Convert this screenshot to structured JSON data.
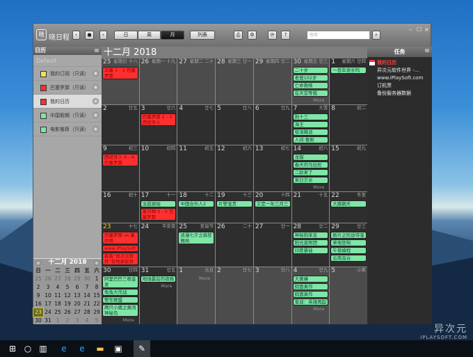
{
  "app": {
    "title": "晓日程",
    "logo_text": "晓"
  },
  "toolbar": {
    "prev": "‹",
    "location": "●",
    "next": "›",
    "views": [
      "日",
      "周",
      "月"
    ],
    "active_view": "月",
    "list": "列表",
    "print": "⎙",
    "settings": "⚙",
    "sync": "⟳",
    "help": "?",
    "search_placeholder": "搜索",
    "search_icon": "⌕",
    "minimize": "–",
    "maximize": "☐",
    "close": "×"
  },
  "left": {
    "header": "日历",
    "default_label": "Default",
    "calendars": [
      {
        "name": "我的订阅（只读）",
        "color": "#f2e24c",
        "selected": false
      },
      {
        "name": "巴塞罗那（只读）",
        "color": "#ff2f2f",
        "selected": false
      },
      {
        "name": "我的日历",
        "color": "#ff2f2f",
        "selected": true
      },
      {
        "name": "中国假期（只读）",
        "color": "#7fe6a6",
        "selected": false
      },
      {
        "name": "电影推荐（只读）",
        "color": "#7fe6a6",
        "selected": false
      }
    ]
  },
  "mini": {
    "title": "十二月 2018",
    "weekdays": [
      "日",
      "一",
      "二",
      "三",
      "四",
      "五",
      "六"
    ],
    "days": [
      [
        "25",
        "26",
        "27",
        "28",
        "29",
        "30",
        "1"
      ],
      [
        "2",
        "3",
        "4",
        "5",
        "6",
        "7",
        "8"
      ],
      [
        "9",
        "10",
        "11",
        "12",
        "13",
        "14",
        "15"
      ],
      [
        "16",
        "17",
        "18",
        "19",
        "20",
        "21",
        "22"
      ],
      [
        "23",
        "24",
        "25",
        "26",
        "27",
        "28",
        "29"
      ],
      [
        "30",
        "31",
        "1",
        "2",
        "3",
        "4",
        "5"
      ]
    ],
    "today": "23"
  },
  "main": {
    "title": "十二月 2018",
    "more_label": "More",
    "weeks": [
      [
        {
          "d": "25",
          "lu": "星期日 十八",
          "om": true,
          "ev": [
            [
              "r",
              "马塞 1 - 1 巴塞罗那"
            ]
          ]
        },
        {
          "d": "26",
          "lu": "星期一 十九",
          "om": true,
          "ev": []
        },
        {
          "d": "27",
          "lu": "星期二 二十",
          "om": true,
          "ev": []
        },
        {
          "d": "28",
          "lu": "星期三 廿一",
          "om": true,
          "ev": []
        },
        {
          "d": "29",
          "lu": "星期四 廿二",
          "om": true,
          "ev": []
        },
        {
          "d": "30",
          "lu": "星期五 廿三",
          "om": true,
          "more": true,
          "ev": [
            [
              "g",
              "二十岁"
            ],
            [
              "g",
              "老爸102岁"
            ],
            [
              "g",
              "亡命救赎"
            ],
            [
              "g",
              "在天堂等我"
            ]
          ]
        },
        {
          "d": "1",
          "lu": "星期六 廿四",
          "ev": [
            [
              "g",
              "一百年很长吗"
            ]
          ]
        }
      ],
      [
        {
          "d": "2",
          "lu": "廿五",
          "ev": []
        },
        {
          "d": "3",
          "lu": "廿六",
          "ev": [
            [
              "r",
              "巴塞罗那 2 - 0 西班牙人"
            ]
          ]
        },
        {
          "d": "4",
          "lu": "廿七",
          "ev": []
        },
        {
          "d": "5",
          "lu": "廿八",
          "ev": []
        },
        {
          "d": "6",
          "lu": "廿九",
          "ev": []
        },
        {
          "d": "7",
          "lu": "大雪",
          "ev": [
            [
              "g",
              "狗十三"
            ],
            [
              "g",
              "海王"
            ],
            [
              "g",
              "惊涛飓浪"
            ],
            [
              "g",
              "人间·喜剧"
            ]
          ]
        },
        {
          "d": "8",
          "lu": "初二",
          "ev": []
        }
      ],
      [
        {
          "d": "9",
          "lu": "初三",
          "ev": [
            [
              "r",
              "西班牙人 0 - 4 巴塞罗那"
            ]
          ]
        },
        {
          "d": "10",
          "lu": "初四",
          "ev": []
        },
        {
          "d": "11",
          "lu": "初五",
          "ev": []
        },
        {
          "d": "12",
          "lu": "初六",
          "ev": []
        },
        {
          "d": "13",
          "lu": "初七",
          "ev": []
        },
        {
          "d": "14",
          "lu": "初八",
          "more": true,
          "ev": [
            [
              "g",
              "龙猫"
            ],
            [
              "g",
              "春天的马拉松"
            ],
            [
              "g",
              "二龄来了"
            ],
            [
              "g",
              "来日方长"
            ]
          ]
        },
        {
          "d": "15",
          "lu": "初九",
          "ev": []
        }
      ],
      [
        {
          "d": "16",
          "lu": "初十",
          "ev": []
        },
        {
          "d": "17",
          "lu": "十一",
          "ev": [
            [
              "g",
              "淡蓝琥珀"
            ],
            [
              "r",
              "莱万特 0 - 5 巴塞罗那"
            ]
          ]
        },
        {
          "d": "18",
          "lu": "十二",
          "ev": [
            [
              "g",
              "中国合伙人2"
            ]
          ]
        },
        {
          "d": "19",
          "lu": "十三",
          "ev": [
            [
              "g",
              "片警宝贵"
            ]
          ]
        },
        {
          "d": "20",
          "lu": "十四",
          "ev": [
            [
              "g",
              "又是一年三月三"
            ]
          ]
        },
        {
          "d": "21",
          "lu": "十五",
          "ev": []
        },
        {
          "d": "22",
          "lu": "冬至",
          "ev": [
            [
              "g",
              "大路朝天"
            ]
          ]
        }
      ],
      [
        {
          "d": "23",
          "lu": "十七",
          "today": true,
          "ev": [
            [
              "r",
              "巴塞罗那 vs 塞尔塔"
            ],
            [
              "r",
              "www.iPlaySoft"
            ],
            [
              "r",
              "看看“异次元软件”有啥新软件"
            ]
          ]
        },
        {
          "d": "24",
          "lu": "平安夜",
          "ev": []
        },
        {
          "d": "25",
          "lu": "圣诞节",
          "ev": [
            [
              "g",
              "浪漫七夕之疯狂雅局"
            ]
          ]
        },
        {
          "d": "26",
          "lu": "二十",
          "ev": []
        },
        {
          "d": "27",
          "lu": "廿一",
          "ev": []
        },
        {
          "d": "28",
          "lu": "廿二",
          "ev": [
            [
              "g",
              "神探狗笨吉"
            ],
            [
              "g",
              "阳光普照团"
            ],
            [
              "g",
              "印度暴徒"
            ]
          ]
        },
        {
          "d": "29",
          "lu": "廿三",
          "ev": [
            [
              "g",
              "断片之险途夺宝"
            ],
            [
              "g",
              "来电狂响"
            ],
            [
              "g",
              "午夜编程"
            ],
            [
              "g",
              "云南虫谷"
            ]
          ]
        }
      ],
      [
        {
          "d": "30",
          "lu": "廿四",
          "more": true,
          "ev": [
            [
              "g",
              "阿里巴巴三根金发"
            ],
            [
              "g",
              "龟兔大作战"
            ],
            [
              "g",
              "警车联盟"
            ],
            [
              "g",
              "两只小猪之勇闯神秘岛"
            ]
          ]
        },
        {
          "d": "31",
          "lu": "廿五",
          "more": true,
          "ev": [
            [
              "g",
              "地球最后的夜晚"
            ]
          ]
        },
        {
          "d": "1",
          "lu": "元旦",
          "om": true,
          "more": true,
          "ev": []
        },
        {
          "d": "2",
          "lu": "廿七",
          "om": true,
          "ev": []
        },
        {
          "d": "3",
          "lu": "廿八",
          "om": true,
          "ev": []
        },
        {
          "d": "4",
          "lu": "廿九",
          "om": true,
          "more": true,
          "ev": [
            [
              "g",
              "大黄蜂"
            ],
            [
              "g",
              "假面真作"
            ],
            [
              "g",
              "假面真作"
            ],
            [
              "g",
              "奎迪：英雄再起"
            ]
          ]
        },
        {
          "d": "5",
          "lu": "小寒",
          "om": true,
          "ev": []
        }
      ]
    ]
  },
  "tasks": {
    "header": "任务",
    "group": "我的日历",
    "items": [
      "异次元软件世界 -...",
      "www.iPlaySoft.com",
      "订机票",
      "备份服务器数据"
    ]
  },
  "watermark": {
    "brand": "异次元",
    "url": "IPLAYSOFT.COM"
  },
  "taskbar": {
    "icons": [
      [
        "start-icon",
        "⊞"
      ],
      [
        "cortana-icon",
        "○"
      ],
      [
        "task-view-icon",
        "▥"
      ],
      [
        "ie-icon",
        "e"
      ],
      [
        "edge-icon",
        "e"
      ],
      [
        "explorer-icon",
        "▬"
      ],
      [
        "store-icon",
        "▣"
      ],
      [
        "calendar-app-icon",
        "✎"
      ]
    ]
  },
  "colors": {
    "event_green": "#7fe6a6",
    "event_red": "#ff2f2f",
    "today_number": "#f0d020"
  }
}
